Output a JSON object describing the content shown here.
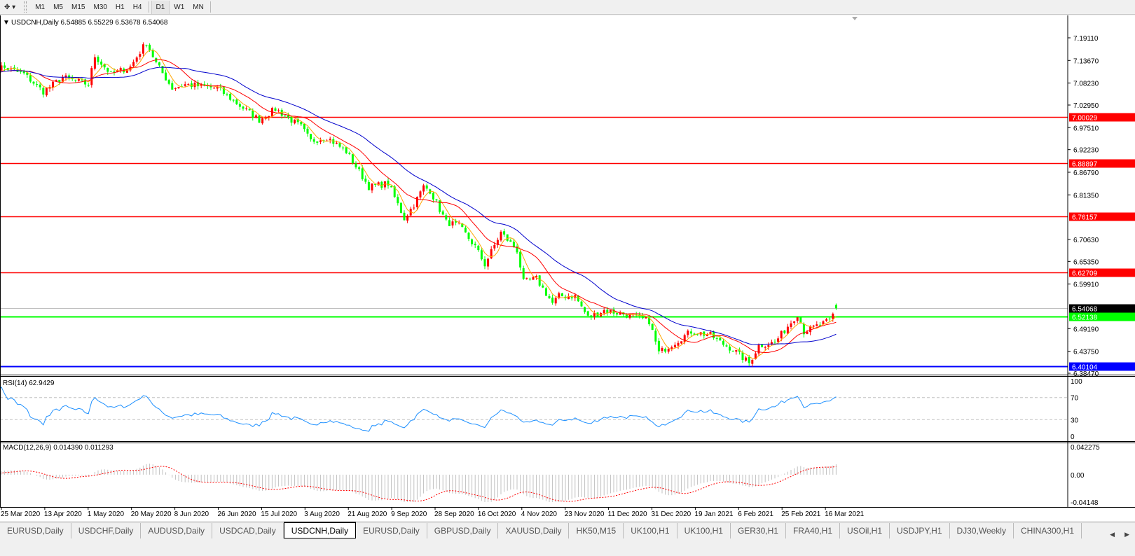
{
  "toolbar": {
    "timeframes": [
      {
        "label": "M1"
      },
      {
        "label": "M5"
      },
      {
        "label": "M15"
      },
      {
        "label": "M30"
      },
      {
        "label": "H1"
      },
      {
        "label": "H4"
      },
      {
        "label": "D1",
        "active": true
      },
      {
        "label": "W1"
      },
      {
        "label": "MN"
      }
    ]
  },
  "chart": {
    "legend": "USDCNH,Daily  6.54885 6.55229 6.53678 6.54068",
    "symbol": "USDCNH",
    "timeframe": "Daily",
    "ohlc": {
      "open": 6.54885,
      "high": 6.55229,
      "low": 6.53678,
      "close": 6.54068
    },
    "colors": {
      "bull": "#ff0000",
      "bear": "#00ff00",
      "ma_fast": "#ffa500",
      "ma_mid": "#ff0000",
      "ma_slow": "#0000cc",
      "rsi": "#1e90ff",
      "macd_hist": "#c0c0c0",
      "macd_signal": "#ff0000"
    }
  },
  "chart_data": {
    "type": "candlestick",
    "price_range": [
      6.3847,
      7.1911
    ],
    "price_ticks": [
      "7.19110",
      "7.13670",
      "7.08230",
      "7.02950",
      "6.97510",
      "6.92230",
      "6.86790",
      "6.81350",
      "6.70630",
      "6.65350",
      "6.59910",
      "6.49190",
      "6.43750",
      "6.38470"
    ],
    "date_ticks": [
      "25 Mar 2020",
      "13 Apr 2020",
      "1 May 2020",
      "20 May 2020",
      "8 Jun 2020",
      "26 Jun 2020",
      "15 Jul 2020",
      "3 Aug 2020",
      "21 Aug 2020",
      "9 Sep 2020",
      "28 Sep 2020",
      "16 Oct 2020",
      "4 Nov 2020",
      "23 Nov 2020",
      "11 Dec 2020",
      "31 Dec 2020",
      "19 Jan 2021",
      "6 Feb 2021",
      "25 Feb 2021",
      "16 Mar 2021"
    ],
    "close_anchors": [
      [
        "2020-03-19",
        7.1
      ],
      [
        "2020-03-25",
        7.121
      ],
      [
        "2020-04-03",
        7.104
      ],
      [
        "2020-04-13",
        7.062
      ],
      [
        "2020-04-21",
        7.096
      ],
      [
        "2020-05-01",
        7.079
      ],
      [
        "2020-05-05",
        7.147
      ],
      [
        "2020-05-12",
        7.104
      ],
      [
        "2020-05-20",
        7.121
      ],
      [
        "2020-05-27",
        7.181
      ],
      [
        "2020-06-01",
        7.13
      ],
      [
        "2020-06-08",
        7.07
      ],
      [
        "2020-06-12",
        7.079
      ],
      [
        "2020-06-26",
        7.07
      ],
      [
        "2020-07-07",
        7.028
      ],
      [
        "2020-07-15",
        6.994
      ],
      [
        "2020-07-22",
        7.02
      ],
      [
        "2020-08-03",
        6.977
      ],
      [
        "2020-08-06",
        6.943
      ],
      [
        "2020-08-13",
        6.952
      ],
      [
        "2020-08-21",
        6.918
      ],
      [
        "2020-09-01",
        6.833
      ],
      [
        "2020-09-09",
        6.841
      ],
      [
        "2020-09-16",
        6.757
      ],
      [
        "2020-09-21",
        6.79
      ],
      [
        "2020-09-24",
        6.833
      ],
      [
        "2020-09-28",
        6.824
      ],
      [
        "2020-10-05",
        6.748
      ],
      [
        "2020-10-09",
        6.739
      ],
      [
        "2020-10-16",
        6.689
      ],
      [
        "2020-10-21",
        6.646
      ],
      [
        "2020-10-28",
        6.723
      ],
      [
        "2020-11-04",
        6.68
      ],
      [
        "2020-11-06",
        6.604
      ],
      [
        "2020-11-12",
        6.612
      ],
      [
        "2020-11-19",
        6.553
      ],
      [
        "2020-11-23",
        6.57
      ],
      [
        "2020-11-30",
        6.57
      ],
      [
        "2020-12-04",
        6.519
      ],
      [
        "2020-12-11",
        6.536
      ],
      [
        "2020-12-21",
        6.527
      ],
      [
        "2020-12-31",
        6.51
      ],
      [
        "2021-01-05",
        6.434
      ],
      [
        "2021-01-12",
        6.459
      ],
      [
        "2021-01-19",
        6.485
      ],
      [
        "2021-01-27",
        6.476
      ],
      [
        "2021-02-01",
        6.459
      ],
      [
        "2021-02-05",
        6.442
      ],
      [
        "2021-02-12",
        6.409
      ],
      [
        "2021-02-17",
        6.451
      ],
      [
        "2021-02-24",
        6.459
      ],
      [
        "2021-03-05",
        6.527
      ],
      [
        "2021-03-09",
        6.485
      ],
      [
        "2021-03-15",
        6.498
      ],
      [
        "2021-03-19",
        6.51
      ],
      [
        "2021-03-23",
        6.54068
      ]
    ],
    "levels": [
      {
        "price": "7.00029",
        "color": "#ff0000"
      },
      {
        "price": "6.88897",
        "color": "#ff0000"
      },
      {
        "price": "6.76157",
        "color": "#ff0000"
      },
      {
        "price": "6.62709",
        "color": "#ff0000"
      },
      {
        "price": "6.52138",
        "color": "#00ff00"
      },
      {
        "price": "6.40104",
        "color": "#0000ff"
      }
    ],
    "bid": {
      "price": "6.54068",
      "color": "#000000"
    },
    "rsi": {
      "label": "RSI(14) 62.9429",
      "period": 14,
      "ticks": [
        "100",
        "70",
        "30",
        "0"
      ]
    },
    "macd": {
      "label": "MACD(12,26,9) 0.014390 0.011293",
      "fast": 12,
      "slow": 26,
      "signal": 9,
      "ticks": [
        "0.042275",
        "0.00",
        "-0.04148"
      ],
      "range": [
        -0.04148,
        0.042275
      ]
    }
  },
  "tabs": [
    {
      "label": "EURUSD,Daily"
    },
    {
      "label": "USDCHF,Daily"
    },
    {
      "label": "AUDUSD,Daily"
    },
    {
      "label": "USDCAD,Daily"
    },
    {
      "label": "USDCNH,Daily",
      "active": true
    },
    {
      "label": "EURUSD,Daily"
    },
    {
      "label": "GBPUSD,Daily"
    },
    {
      "label": "XAUUSD,Daily"
    },
    {
      "label": "HK50,M15"
    },
    {
      "label": "UK100,H1"
    },
    {
      "label": "UK100,H1"
    },
    {
      "label": "GER30,H1"
    },
    {
      "label": "FRA40,H1"
    },
    {
      "label": "USOil,H1"
    },
    {
      "label": "USDJPY,H1"
    },
    {
      "label": "DJ30,Weekly"
    },
    {
      "label": "CHINA300,H1"
    }
  ]
}
